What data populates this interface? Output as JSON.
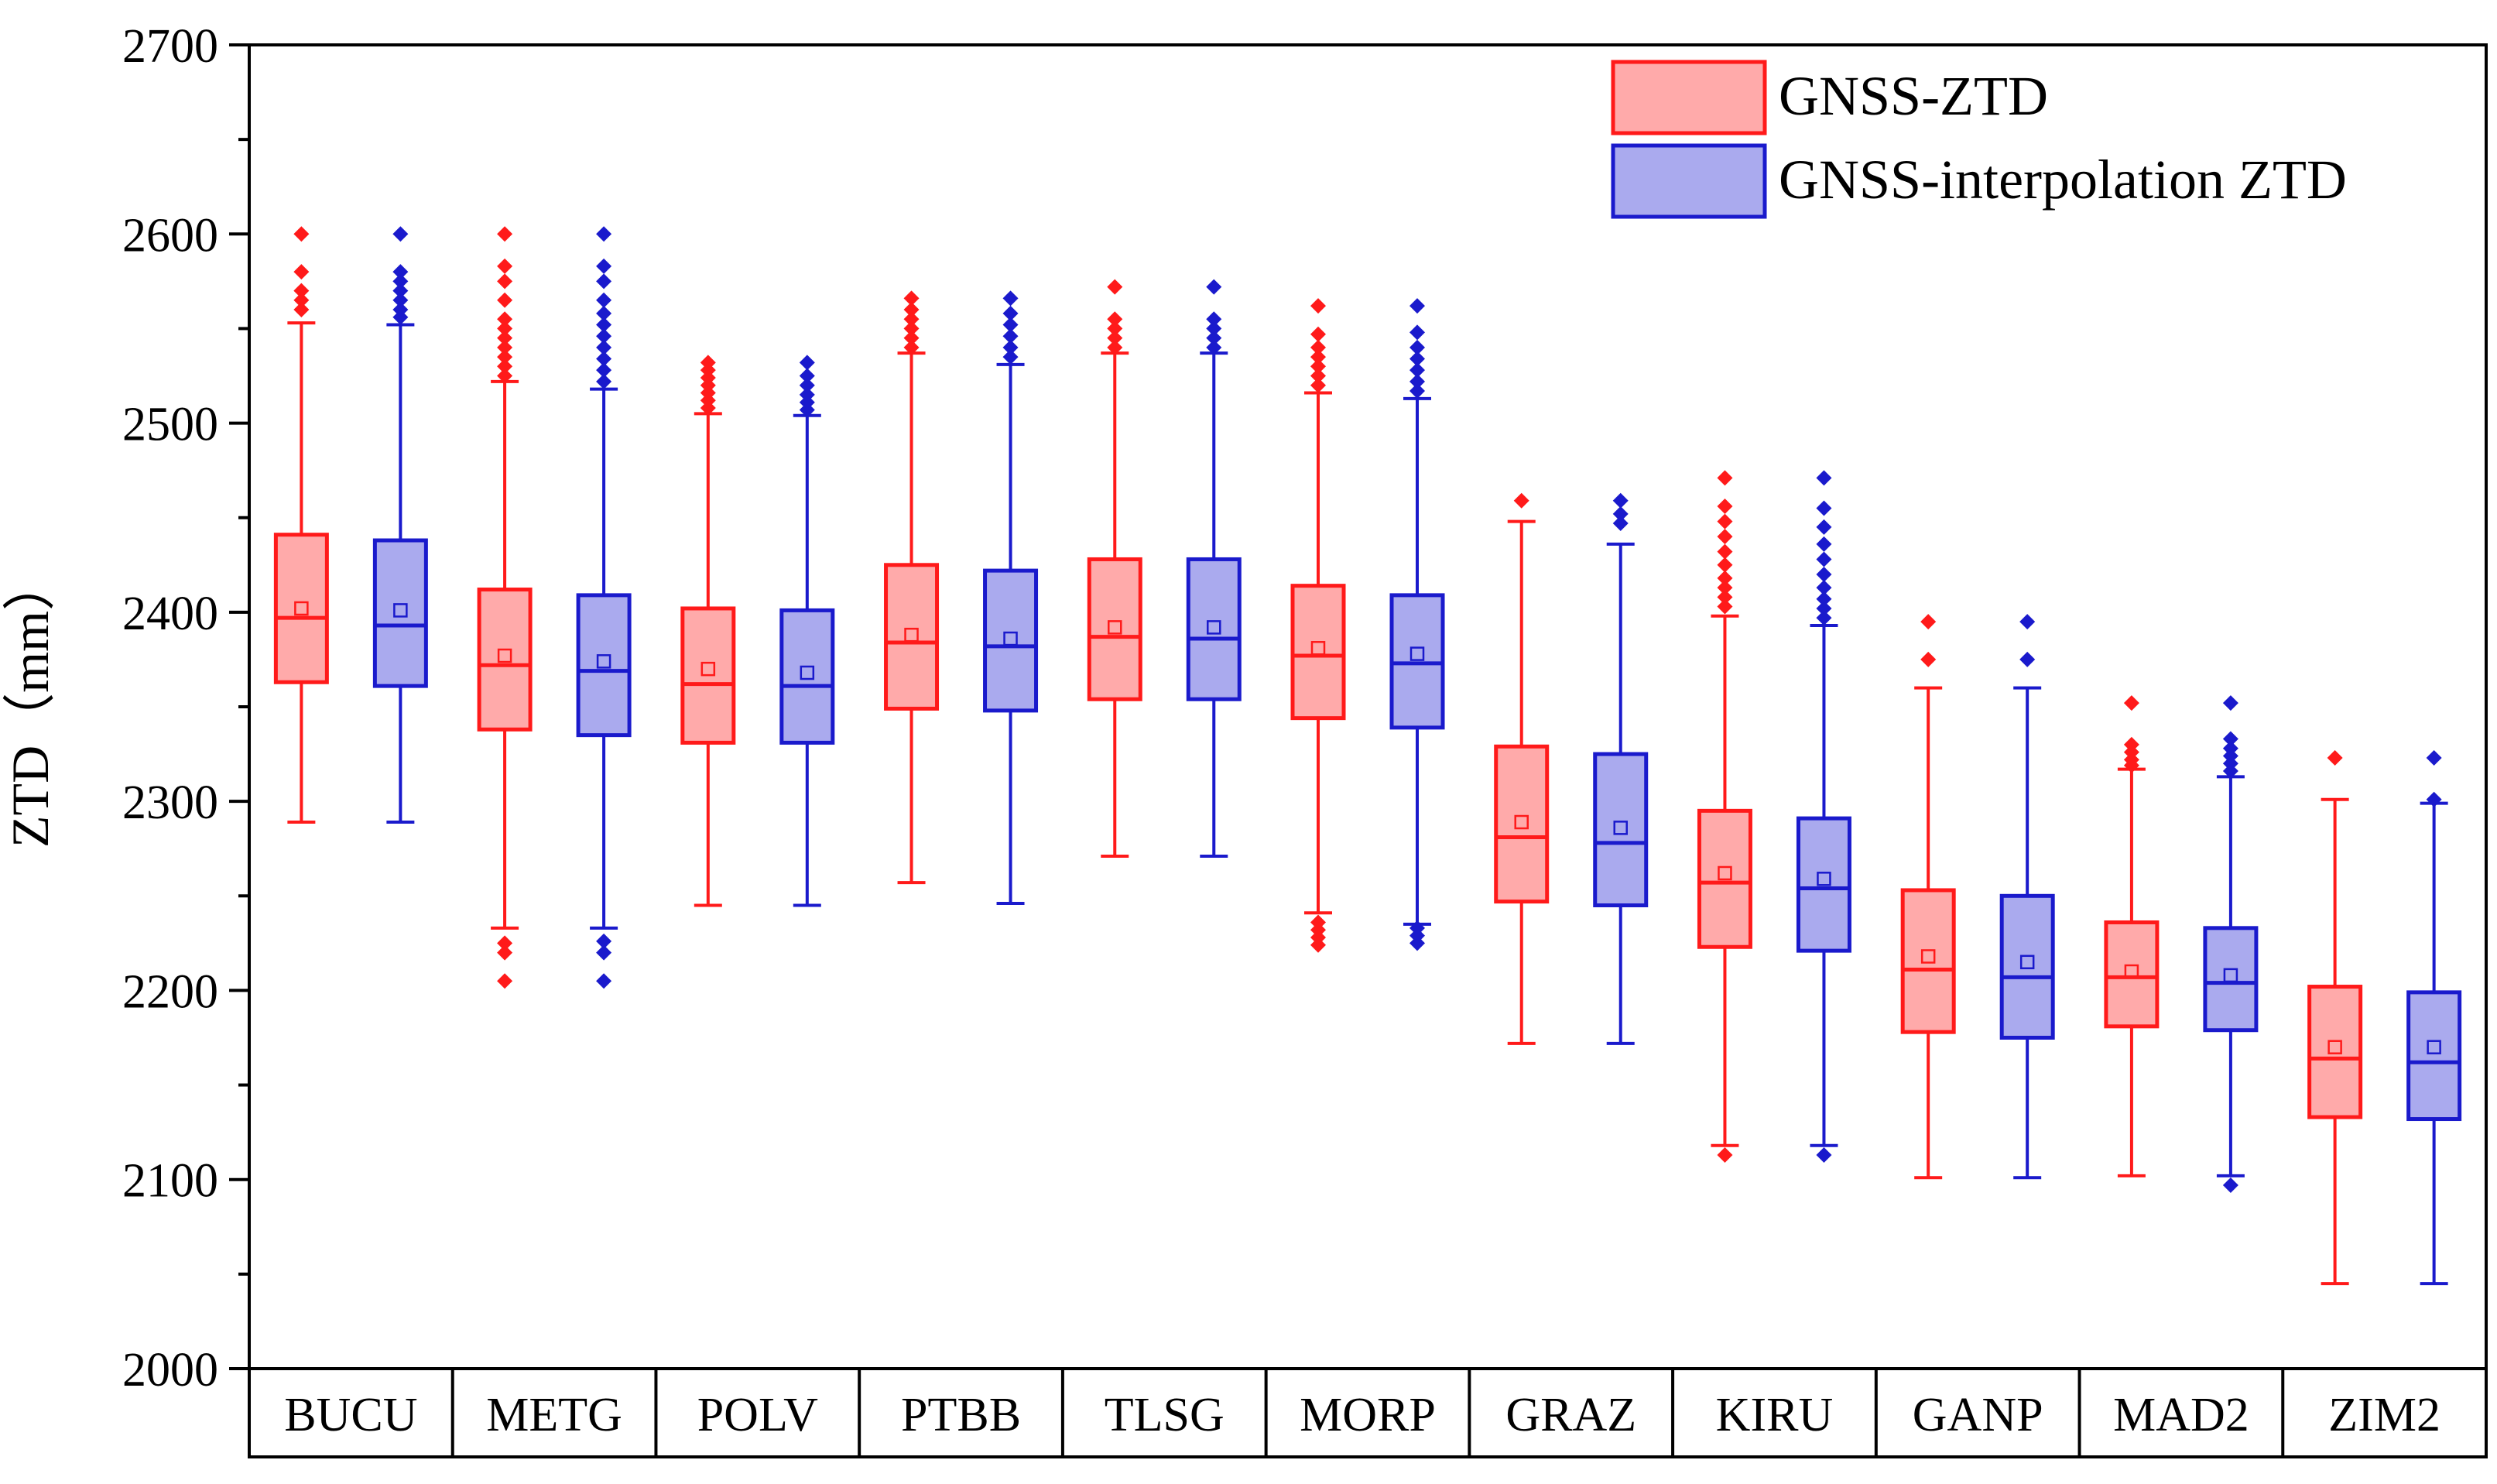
{
  "chart_data": {
    "type": "box",
    "ylabel": "ZTD（mm）",
    "xlabel": "",
    "ylim": [
      2000,
      2700
    ],
    "yticks": [
      2000,
      2100,
      2200,
      2300,
      2400,
      2500,
      2600,
      2700
    ],
    "grid": false,
    "legend": {
      "position": "top-right",
      "entries": [
        "GNSS-ZTD",
        "GNSS-interpolation ZTD"
      ]
    },
    "categories": [
      "BUCU",
      "METG",
      "POLV",
      "PTBB",
      "TLSG",
      "MORP",
      "GRAZ",
      "KIRU",
      "GANP",
      "MAD2",
      "ZIM2"
    ],
    "series": [
      {
        "name": "GNSS-ZTD",
        "stroke": "#ff1a1a",
        "fill": "#ffaaaa",
        "boxes": [
          {
            "q1": 2363,
            "median": 2397,
            "q3": 2441,
            "whisker_low": 2289,
            "whisker_high": 2553,
            "mean": 2402,
            "outliers": [
              2560,
              2565,
              2570,
              2580,
              2600
            ]
          },
          {
            "q1": 2338,
            "median": 2372,
            "q3": 2412,
            "whisker_low": 2233,
            "whisker_high": 2522,
            "mean": 2377,
            "outliers": [
              2205,
              2220,
              2225,
              2525,
              2530,
              2535,
              2540,
              2545,
              2550,
              2555,
              2565,
              2575,
              2583,
              2600
            ]
          },
          {
            "q1": 2331,
            "median": 2362,
            "q3": 2402,
            "whisker_low": 2245,
            "whisker_high": 2505,
            "mean": 2370,
            "outliers": [
              2508,
              2512,
              2516,
              2520,
              2524,
              2528,
              2532
            ]
          },
          {
            "q1": 2349,
            "median": 2384,
            "q3": 2425,
            "whisker_low": 2257,
            "whisker_high": 2537,
            "mean": 2388,
            "outliers": [
              2540,
              2545,
              2550,
              2555,
              2560,
              2566
            ]
          },
          {
            "q1": 2354,
            "median": 2387,
            "q3": 2428,
            "whisker_low": 2271,
            "whisker_high": 2537,
            "mean": 2392,
            "outliers": [
              2540,
              2545,
              2550,
              2555,
              2572
            ]
          },
          {
            "q1": 2344,
            "median": 2377,
            "q3": 2414,
            "whisker_low": 2241,
            "whisker_high": 2516,
            "mean": 2381,
            "outliers": [
              2224,
              2228,
              2232,
              2236,
              2520,
              2525,
              2530,
              2535,
              2540,
              2547,
              2562
            ]
          },
          {
            "q1": 2247,
            "median": 2281,
            "q3": 2329,
            "whisker_low": 2172,
            "whisker_high": 2448,
            "mean": 2289,
            "outliers": [
              2459
            ]
          },
          {
            "q1": 2223,
            "median": 2257,
            "q3": 2295,
            "whisker_low": 2118,
            "whisker_high": 2398,
            "mean": 2262,
            "outliers": [
              2113,
              2403,
              2408,
              2413,
              2418,
              2425,
              2432,
              2440,
              2448,
              2456,
              2471
            ]
          },
          {
            "q1": 2178,
            "median": 2211,
            "q3": 2253,
            "whisker_low": 2101,
            "whisker_high": 2360,
            "mean": 2218,
            "outliers": [
              2375,
              2395
            ]
          },
          {
            "q1": 2181,
            "median": 2207,
            "q3": 2236,
            "whisker_low": 2102,
            "whisker_high": 2317,
            "mean": 2210,
            "outliers": [
              2319,
              2322,
              2326,
              2330,
              2352
            ]
          },
          {
            "q1": 2133,
            "median": 2164,
            "q3": 2202,
            "whisker_low": 2045,
            "whisker_high": 2301,
            "mean": 2170,
            "outliers": [
              2323
            ]
          }
        ]
      },
      {
        "name": "GNSS-interpolation ZTD",
        "stroke": "#1a1acc",
        "fill": "#aaaaee",
        "boxes": [
          {
            "q1": 2361,
            "median": 2393,
            "q3": 2438,
            "whisker_low": 2289,
            "whisker_high": 2552,
            "mean": 2401,
            "outliers": [
              2556,
              2560,
              2565,
              2570,
              2575,
              2580,
              2600
            ]
          },
          {
            "q1": 2335,
            "median": 2369,
            "q3": 2409,
            "whisker_low": 2233,
            "whisker_high": 2518,
            "mean": 2374,
            "outliers": [
              2205,
              2220,
              2226,
              2522,
              2528,
              2534,
              2540,
              2546,
              2552,
              2558,
              2565,
              2575,
              2583,
              2600
            ]
          },
          {
            "q1": 2331,
            "median": 2361,
            "q3": 2401,
            "whisker_low": 2245,
            "whisker_high": 2504,
            "mean": 2368,
            "outliers": [
              2507,
              2511,
              2515,
              2520,
              2525,
              2532
            ]
          },
          {
            "q1": 2348,
            "median": 2382,
            "q3": 2422,
            "whisker_low": 2246,
            "whisker_high": 2531,
            "mean": 2386,
            "outliers": [
              2535,
              2540,
              2546,
              2552,
              2558,
              2566
            ]
          },
          {
            "q1": 2354,
            "median": 2386,
            "q3": 2428,
            "whisker_low": 2271,
            "whisker_high": 2537,
            "mean": 2392,
            "outliers": [
              2540,
              2545,
              2550,
              2555,
              2572
            ]
          },
          {
            "q1": 2339,
            "median": 2373,
            "q3": 2409,
            "whisker_low": 2235,
            "whisker_high": 2513,
            "mean": 2378,
            "outliers": [
              2225,
              2229,
              2233,
              2517,
              2522,
              2528,
              2534,
              2540,
              2548,
              2562
            ]
          },
          {
            "q1": 2245,
            "median": 2278,
            "q3": 2325,
            "whisker_low": 2172,
            "whisker_high": 2436,
            "mean": 2286,
            "outliers": [
              2447,
              2452,
              2459
            ]
          },
          {
            "q1": 2221,
            "median": 2254,
            "q3": 2291,
            "whisker_low": 2118,
            "whisker_high": 2393,
            "mean": 2259,
            "outliers": [
              2113,
              2397,
              2402,
              2407,
              2413,
              2420,
              2428,
              2436,
              2445,
              2455,
              2471
            ]
          },
          {
            "q1": 2175,
            "median": 2207,
            "q3": 2250,
            "whisker_low": 2101,
            "whisker_high": 2360,
            "mean": 2215,
            "outliers": [
              2375,
              2395
            ]
          },
          {
            "q1": 2179,
            "median": 2204,
            "q3": 2233,
            "whisker_low": 2102,
            "whisker_high": 2313,
            "mean": 2208,
            "outliers": [
              2097,
              2316,
              2320,
              2324,
              2328,
              2333,
              2352
            ]
          },
          {
            "q1": 2132,
            "median": 2162,
            "q3": 2199,
            "whisker_low": 2045,
            "whisker_high": 2299,
            "mean": 2170,
            "outliers": [
              2301,
              2323
            ]
          }
        ]
      }
    ]
  }
}
